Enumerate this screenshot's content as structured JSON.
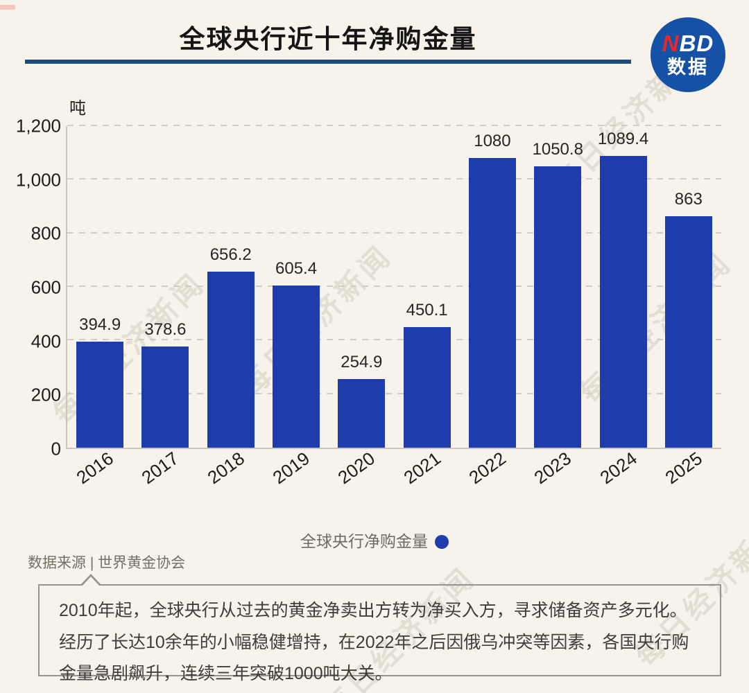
{
  "page": {
    "background": "#f7f3ea"
  },
  "header": {
    "title": "全球央行近十年净购金量",
    "divider_color": "#1b4c80"
  },
  "logo": {
    "letter_red": "N",
    "letters_white": "BD",
    "subtitle": "数据",
    "circle_color": "#1552a5",
    "red_color": "#e8282d"
  },
  "chart_data": {
    "type": "bar",
    "title": "全球央行近十年净购金量",
    "unit_label": "吨",
    "categories": [
      "2016",
      "2017",
      "2018",
      "2019",
      "2020",
      "2021",
      "2022",
      "2023",
      "2024",
      "2025"
    ],
    "values": [
      394.9,
      378.6,
      656.2,
      605.4,
      254.9,
      450.1,
      1080,
      1050.8,
      1089.4,
      863
    ],
    "value_labels": [
      "394.9",
      "378.6",
      "656.2",
      "605.4",
      "254.9",
      "450.1",
      "1080",
      "1050.8",
      "1089.4",
      "863"
    ],
    "ylim": [
      0,
      1200
    ],
    "yticks": [
      "0",
      "200",
      "400",
      "600",
      "800",
      "1,000",
      "1,200"
    ],
    "grid": "dashed-horizontal",
    "bar_color": "#1e3cac",
    "legend": {
      "label": "全球央行净购金量",
      "position": "bottom-center",
      "marker": "circle",
      "marker_color": "#1e3cac"
    }
  },
  "source": {
    "text": "数据来源 | 世界黄金协会"
  },
  "note_box": {
    "text": "2010年起，全球央行从过去的黄金净卖出方转为净买入方，寻求储备资产多元化。经历了长达10余年的小幅稳健增持，在2022年之后因俄乌冲突等因素，各国央行购金量急剧飙升，连续三年突破1000吨大关。"
  },
  "watermark": {
    "text": "每日经济新闻"
  }
}
